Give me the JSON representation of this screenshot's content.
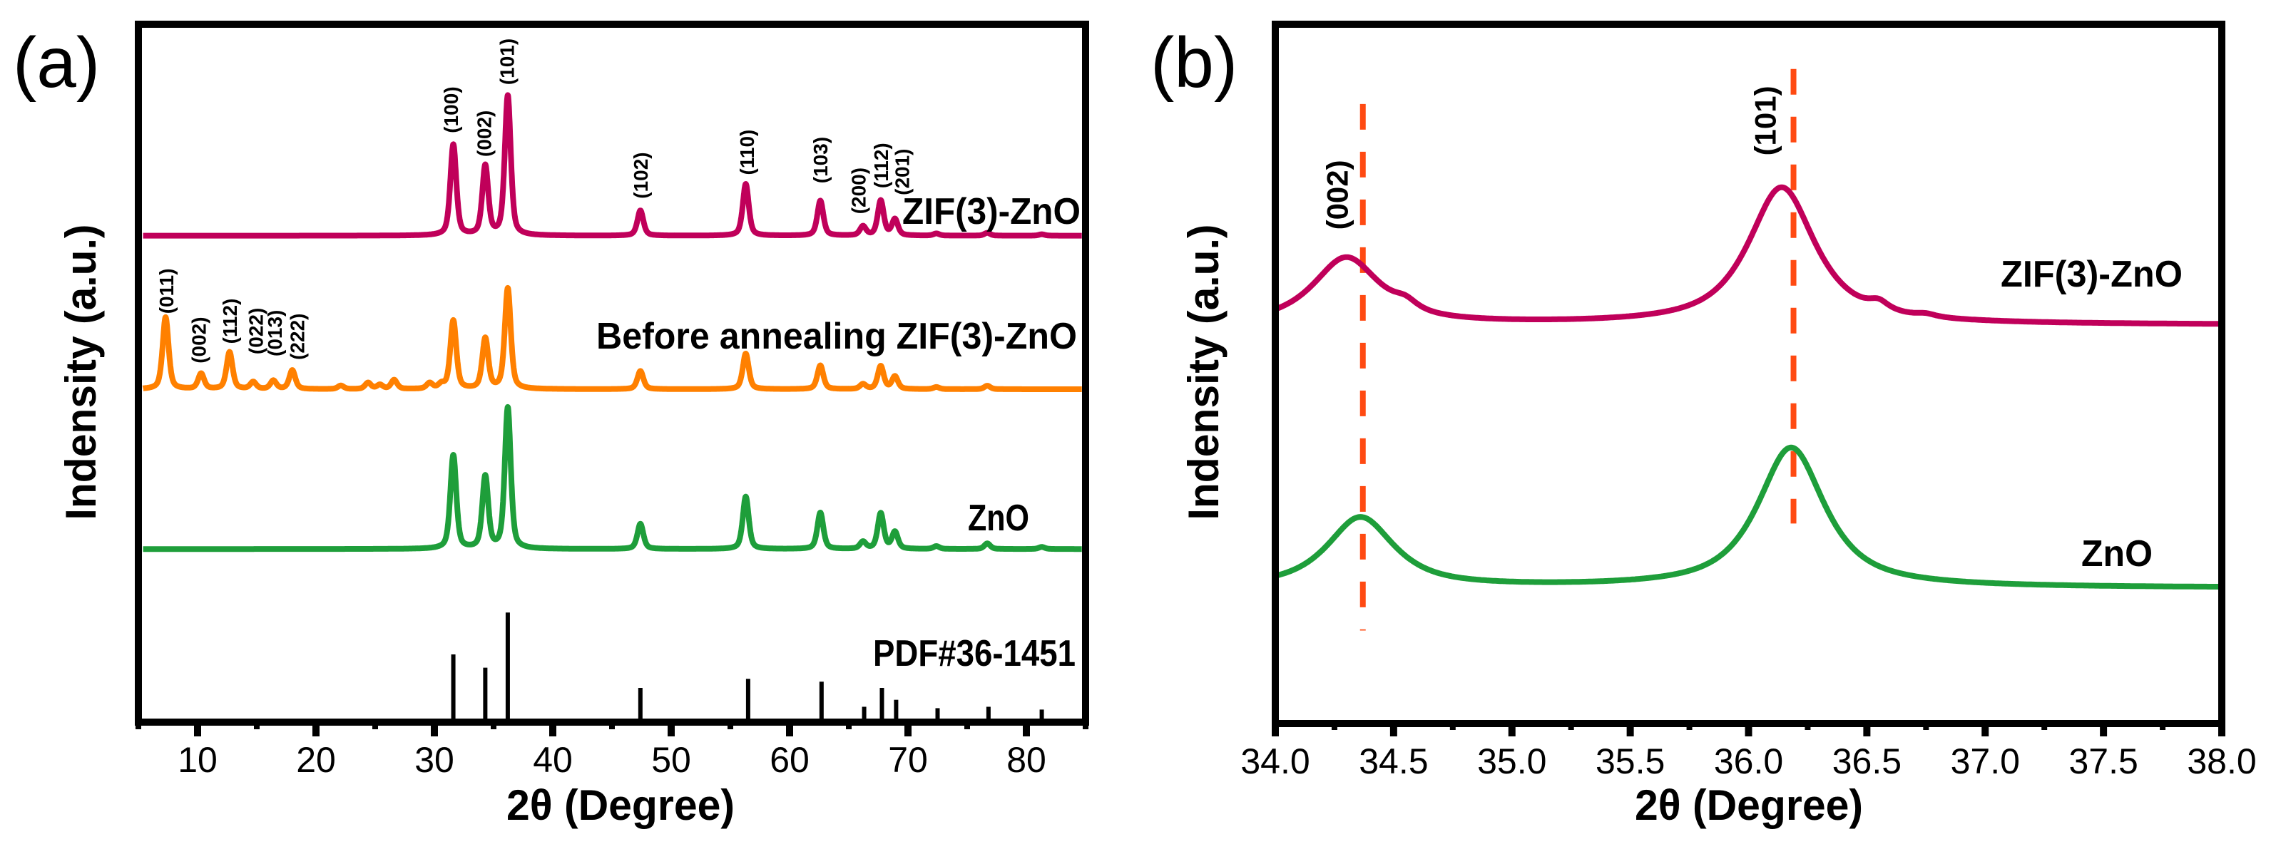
{
  "chart_data": [
    {
      "panel_label": "(a)",
      "type": "line",
      "title": "",
      "xlabel": "2θ (Degree)",
      "ylabel": "Indensity (a.u.)",
      "xlim": [
        5,
        85
      ],
      "ylim": [
        0,
        100
      ],
      "xticks": [
        10,
        20,
        30,
        40,
        50,
        60,
        70,
        80
      ],
      "xticks_minor": [
        5,
        15,
        25,
        35,
        45,
        55,
        65,
        75,
        85
      ],
      "grid": false,
      "legend": "inline labels at right of each curve",
      "peak_shape": {
        "hwhm": 0.3,
        "lorentz_fraction": 0.5
      },
      "series": [
        {
          "name": "ZIF(3)-ZnO",
          "color": "#C0005A",
          "offset": 69.7,
          "peaks": [
            [
              31.6,
              13.0
            ],
            [
              34.3,
              9.9
            ],
            [
              36.2,
              20.0
            ],
            [
              47.4,
              3.6
            ],
            [
              56.3,
              7.4
            ],
            [
              62.6,
              5.0
            ],
            [
              66.2,
              1.3
            ],
            [
              67.7,
              5.0
            ],
            [
              68.9,
              2.3
            ],
            [
              72.4,
              0.3
            ],
            [
              76.7,
              0.4
            ],
            [
              81.3,
              0.2
            ]
          ],
          "hkl_labels": [
            {
              "text": "(100)",
              "x": 31.4,
              "y": 84.4
            },
            {
              "text": "(002)",
              "x": 34.2,
              "y": 81.0
            },
            {
              "text": "(101)",
              "x": 36.1,
              "y": 91.3
            },
            {
              "text": "(102)",
              "x": 47.4,
              "y": 75.0
            },
            {
              "text": "(110)",
              "x": 56.4,
              "y": 78.4
            },
            {
              "text": "(103)",
              "x": 62.6,
              "y": 77.2
            },
            {
              "text": "(200)",
              "x": 65.8,
              "y": 72.8
            },
            {
              "text": "(112)",
              "x": 67.7,
              "y": 76.5
            },
            {
              "text": "(201)",
              "x": 69.5,
              "y": 75.5
            }
          ]
        },
        {
          "name": "Before annealing ZIF(3)-ZnO",
          "color": "#FF8000",
          "offset": 47.7,
          "peaks": [
            [
              7.3,
              10.3
            ],
            [
              10.3,
              2.2
            ],
            [
              12.7,
              5.3
            ],
            [
              14.7,
              1.0
            ],
            [
              16.4,
              1.2
            ],
            [
              18.0,
              2.7
            ],
            [
              22.1,
              0.5
            ],
            [
              24.4,
              0.9
            ],
            [
              25.4,
              0.6
            ],
            [
              26.6,
              1.3
            ],
            [
              29.6,
              0.8
            ],
            [
              30.6,
              0.6
            ],
            [
              31.6,
              9.8
            ],
            [
              34.3,
              7.2
            ],
            [
              36.2,
              14.4
            ],
            [
              47.4,
              2.6
            ],
            [
              56.3,
              5.1
            ],
            [
              62.6,
              3.4
            ],
            [
              66.2,
              0.7
            ],
            [
              67.7,
              3.3
            ],
            [
              68.9,
              1.8
            ],
            [
              72.4,
              0.3
            ],
            [
              76.7,
              0.5
            ]
          ],
          "hkl_labels": [
            {
              "text": "(011)",
              "x": 7.35,
              "y": 58.5
            },
            {
              "text": "(002)",
              "x": 10.1,
              "y": 51.4
            },
            {
              "text": "(112)",
              "x": 12.7,
              "y": 54.2
            },
            {
              "text": "(022)",
              "x": 14.9,
              "y": 52.7
            },
            {
              "text": "(013)",
              "x": 16.5,
              "y": 52.4
            },
            {
              "text": "(222)",
              "x": 18.4,
              "y": 51.9
            }
          ]
        },
        {
          "name": "ZnO",
          "color": "#1E9E3A",
          "offset": 24.8,
          "peaks": [
            [
              31.6,
              13.4
            ],
            [
              34.3,
              10.3
            ],
            [
              36.2,
              20.2
            ],
            [
              47.4,
              3.6
            ],
            [
              56.3,
              7.5
            ],
            [
              62.6,
              5.2
            ],
            [
              66.2,
              1.0
            ],
            [
              67.7,
              5.1
            ],
            [
              68.9,
              2.4
            ],
            [
              72.4,
              0.4
            ],
            [
              76.7,
              0.8
            ],
            [
              81.3,
              0.3
            ]
          ],
          "hkl_labels": []
        }
      ],
      "reference": {
        "name": "PDF#36-1451",
        "color": "#000000",
        "sticks": [
          [
            31.6,
            9.7
          ],
          [
            34.3,
            7.8
          ],
          [
            36.2,
            15.7
          ],
          [
            47.4,
            4.9
          ],
          [
            56.5,
            6.2
          ],
          [
            62.7,
            5.8
          ],
          [
            66.3,
            2.2
          ],
          [
            67.8,
            4.9
          ],
          [
            69.0,
            3.2
          ],
          [
            72.5,
            2.0
          ],
          [
            76.8,
            2.2
          ],
          [
            81.3,
            1.8
          ]
        ]
      }
    },
    {
      "panel_label": "(b)",
      "type": "line",
      "title": "",
      "xlabel": "2θ (Degree)",
      "ylabel": "Indensity (a.u.)",
      "xlim": [
        34.0,
        38.0
      ],
      "ylim": [
        0,
        100
      ],
      "xticks": [
        "34.0",
        "34.5",
        "35.0",
        "35.5",
        "36.0",
        "36.5",
        "37.0",
        "37.5",
        "38.0"
      ],
      "xticks_minor": [
        34.25,
        34.75,
        35.25,
        35.75,
        36.25,
        36.75,
        37.25,
        37.75
      ],
      "grid": false,
      "legend": "inline labels at right of each curve",
      "series": [
        {
          "name": "ZIF(3)-ZnO",
          "color": "#C0005A",
          "baseline": 57.0,
          "peaks": [
            [
              34.3,
              9.5,
              0.17
            ],
            [
              34.55,
              1.2,
              0.06
            ],
            [
              36.14,
              19.6,
              0.17
            ],
            [
              36.55,
              1.2,
              0.05
            ],
            [
              36.75,
              0.4,
              0.05
            ]
          ]
        },
        {
          "name": "ZnO",
          "color": "#1E9E3A",
          "baseline": 19.4,
          "peaks": [
            [
              34.36,
              10.0,
              0.17
            ],
            [
              36.18,
              20.0,
              0.17
            ]
          ]
        }
      ],
      "reference_lines": [
        {
          "hkl": "(002)",
          "x": 34.37,
          "y_range": [
            13.3,
            88.6
          ],
          "label_x": 34.26,
          "label_y": 70.6,
          "color": "#FF4A12"
        },
        {
          "hkl": "(101)",
          "x": 36.19,
          "y_range": [
            28.6,
            93.6
          ],
          "label_x": 36.07,
          "label_y": 81.2,
          "color": "#FF4A12"
        }
      ]
    }
  ]
}
